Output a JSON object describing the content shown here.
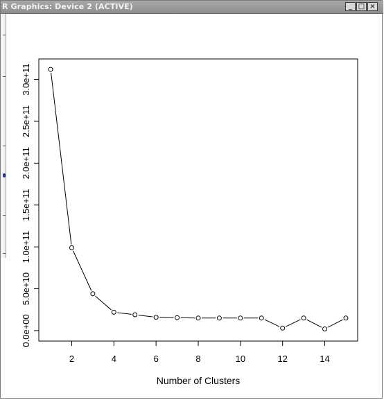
{
  "window": {
    "title": "R Graphics: Device 2 (ACTIVE)",
    "controls": {
      "minimize": "_",
      "maximize": "□",
      "close": "×"
    }
  },
  "chart_data": {
    "type": "line",
    "markers": "open-circle",
    "title": "",
    "xlabel": "Number of Clusters",
    "ylabel": "",
    "x": [
      1,
      2,
      3,
      4,
      5,
      6,
      7,
      8,
      9,
      10,
      11,
      12,
      13,
      14,
      15
    ],
    "y": [
      312000000000,
      99000000000,
      44000000000,
      22000000000,
      19000000000,
      16000000000,
      15500000000,
      15000000000,
      15000000000,
      15000000000,
      15000000000,
      3000000000,
      15000000000,
      2000000000,
      15000000000
    ],
    "xlim": [
      0.44,
      15.56
    ],
    "ylim": [
      -12480000000,
      324480000000
    ],
    "xticks": [
      2,
      4,
      6,
      8,
      10,
      12,
      14
    ],
    "xtick_labels": [
      "2",
      "4",
      "6",
      "8",
      "10",
      "12",
      "14"
    ],
    "yticks": [
      0,
      50000000000,
      100000000000,
      150000000000,
      200000000000,
      250000000000,
      300000000000
    ],
    "ytick_labels": [
      "0.0e+00",
      "5.0e+10",
      "1.0e+11",
      "1.5e+11",
      "2.0e+11",
      "2.5e+11",
      "3.0e+11"
    ],
    "grid": false,
    "legend": "none"
  }
}
